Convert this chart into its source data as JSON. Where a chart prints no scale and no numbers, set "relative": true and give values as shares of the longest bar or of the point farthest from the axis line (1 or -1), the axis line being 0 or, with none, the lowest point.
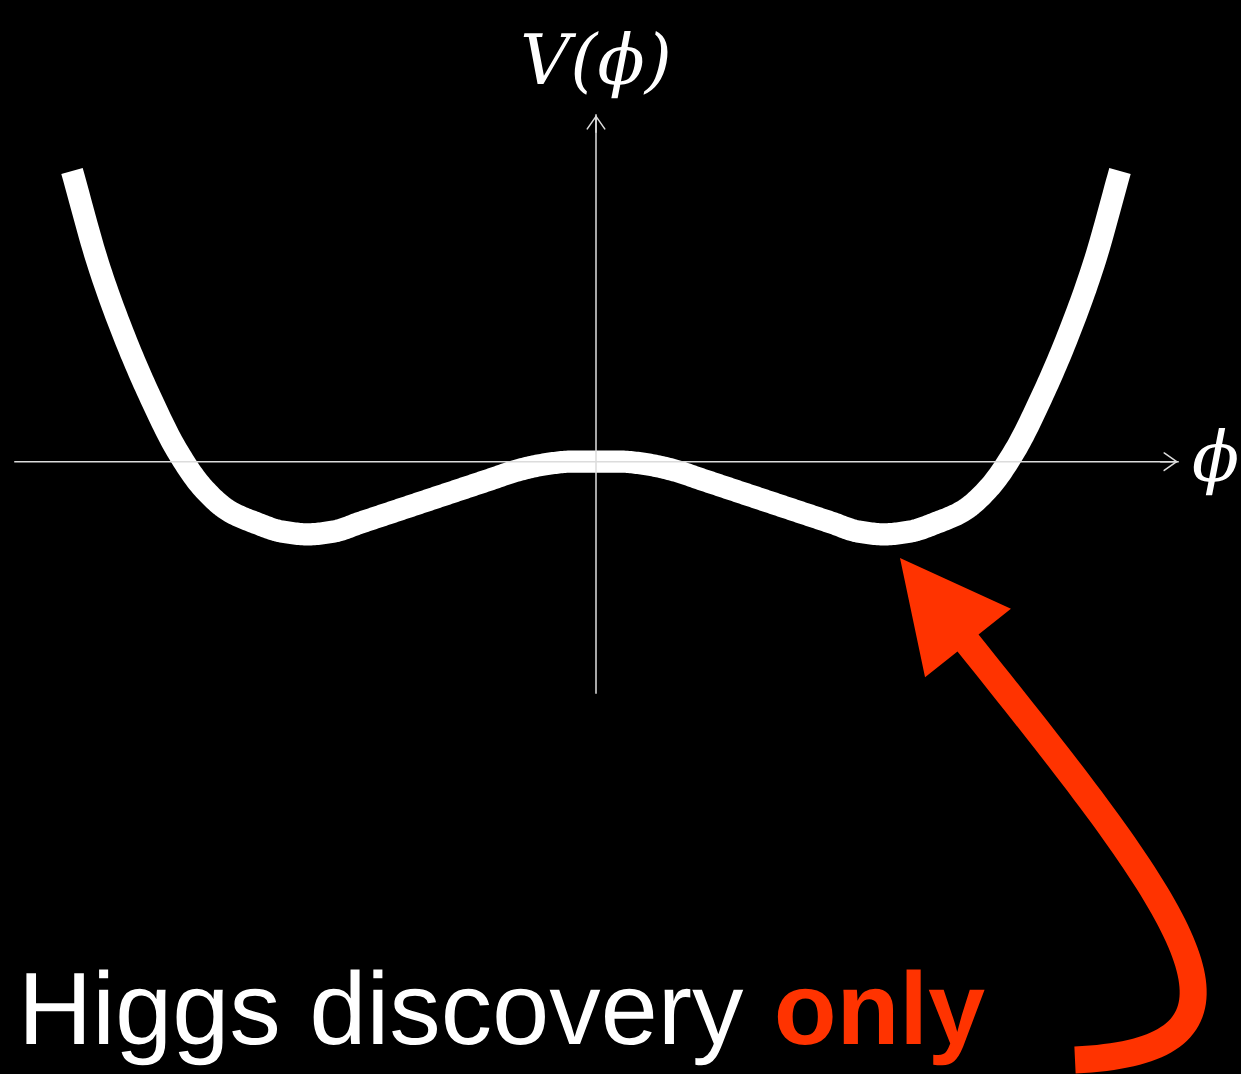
{
  "chart_data": {
    "type": "line",
    "relative": true,
    "xlabel": "ϕ",
    "ylabel": "V(ϕ)",
    "categories": [
      null,
      null,
      null,
      null,
      null,
      null,
      null,
      null,
      null,
      null,
      null,
      null,
      null,
      null,
      null,
      null,
      null,
      null,
      null,
      null,
      null,
      null,
      null,
      null,
      null,
      null,
      null,
      null,
      null,
      null,
      null,
      null,
      null,
      null,
      null,
      null,
      null,
      null,
      null,
      null,
      null
    ],
    "series": [
      {
        "color": "#ffffff",
        "values": [
          1.0,
          0.68,
          0.43,
          0.22,
          0.04,
          -0.09,
          -0.17,
          -0.21,
          -0.24,
          -0.25,
          -0.24,
          -0.21,
          -0.18,
          -0.15,
          -0.12,
          -0.09,
          -0.06,
          -0.03,
          -0.01,
          0.0,
          0.0,
          0.0,
          -0.01,
          -0.03,
          -0.06,
          -0.09,
          -0.12,
          -0.15,
          -0.18,
          -0.21,
          -0.24,
          -0.25,
          -0.24,
          -0.21,
          -0.17,
          -0.09,
          0.04,
          0.22,
          0.43,
          0.68,
          1.0
        ]
      }
    ],
    "annotations": [
      "Higgs discovery",
      "only"
    ]
  }
}
